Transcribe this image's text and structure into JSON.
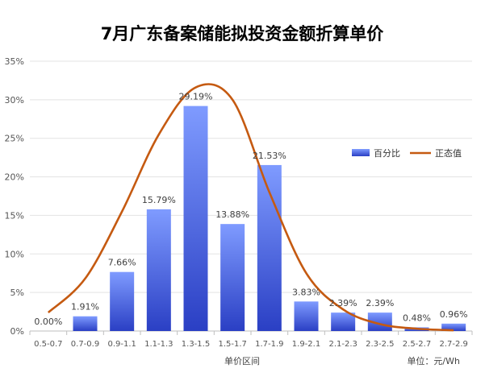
{
  "chart_data": {
    "type": "bar",
    "title": "7月广东备案储能拟投资金额折算单价",
    "xlabel": "单价区间",
    "unit_note": "单位：元/Wh",
    "ylim": [
      0,
      35
    ],
    "yticks": [
      "0%",
      "5%",
      "10%",
      "15%",
      "20%",
      "25%",
      "30%",
      "35%"
    ],
    "grid": true,
    "legend_position": "right",
    "categories": [
      "0.5-0.7",
      "0.7-0.9",
      "0.9-1.1",
      "1.1-1.3",
      "1.3-1.5",
      "1.5-1.7",
      "1.7-1.9",
      "1.9-2.1",
      "2.1-2.3",
      "2.3-2.5",
      "2.5-2.7",
      "2.7-2.9"
    ],
    "series": [
      {
        "name": "百分比",
        "type": "bar",
        "color": "#4a67e0",
        "values": [
          0.0,
          1.91,
          7.66,
          15.79,
          29.19,
          13.88,
          21.53,
          3.83,
          2.39,
          2.39,
          0.48,
          0.96
        ],
        "labels": [
          "0.00%",
          "1.91%",
          "7.66%",
          "15.79%",
          "29.19%",
          "13.88%",
          "21.53%",
          "3.83%",
          "2.39%",
          "2.39%",
          "0.48%",
          "0.96%"
        ]
      },
      {
        "name": "正态值",
        "type": "line",
        "color": "#c55a11",
        "values": [
          2.4,
          6.8,
          15.5,
          25.5,
          31.6,
          30.0,
          18.0,
          7.5,
          2.8,
          0.9,
          0.3,
          0.1
        ]
      }
    ]
  }
}
